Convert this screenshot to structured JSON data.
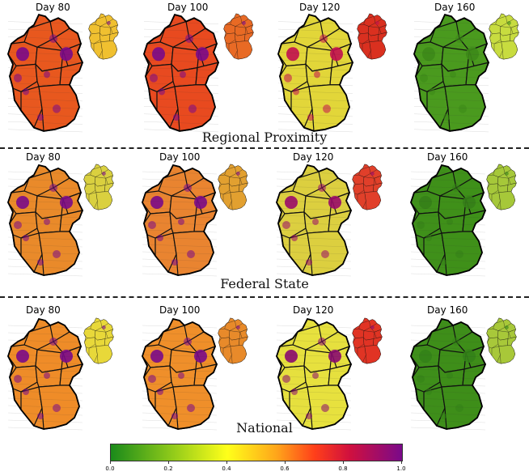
{
  "rows": [
    {
      "title": "Regional Proximity",
      "panels": [
        {
          "label": "Day 80",
          "main": "#e8581f",
          "hot": "#7a0a8a",
          "inset": "#f0c030"
        },
        {
          "label": "Day 100",
          "main": "#e84a20",
          "hot": "#7a0a8a",
          "inset": "#e86a25"
        },
        {
          "label": "Day 120",
          "main": "#e2d63a",
          "hot": "#c21050",
          "inset": "#d93020"
        },
        {
          "label": "Day 160",
          "main": "#4a9a1e",
          "hot": "#3d8a18",
          "inset": "#c8dc40"
        }
      ]
    },
    {
      "title": "Federal State",
      "panels": [
        {
          "label": "Day 80",
          "main": "#e98a2a",
          "hot": "#7a0a8a",
          "inset": "#d9d040"
        },
        {
          "label": "Day 100",
          "main": "#e98430",
          "hot": "#7a0a8a",
          "inset": "#e2a030"
        },
        {
          "label": "Day 120",
          "main": "#dccf40",
          "hot": "#9a0a6a",
          "inset": "#e0402a"
        },
        {
          "label": "Day 160",
          "main": "#3f901a",
          "hot": "#358018",
          "inset": "#a6c83a"
        }
      ]
    },
    {
      "title": "National",
      "panels": [
        {
          "label": "Day 80",
          "main": "#ee8c28",
          "hot": "#7a0a8a",
          "inset": "#e8d83a"
        },
        {
          "label": "Day 100",
          "main": "#ef8f2a",
          "hot": "#7a0a8a",
          "inset": "#e88a2a"
        },
        {
          "label": "Day 120",
          "main": "#e6e03e",
          "hot": "#8a0a70",
          "inset": "#e03424"
        },
        {
          "label": "Day 160",
          "main": "#3e8e1a",
          "hot": "#338218",
          "inset": "#a8c83a"
        }
      ]
    }
  ],
  "colorbar": {
    "ticks": [
      "0.0",
      "0.2",
      "0.4",
      "0.6",
      "0.8",
      "1.0"
    ]
  }
}
